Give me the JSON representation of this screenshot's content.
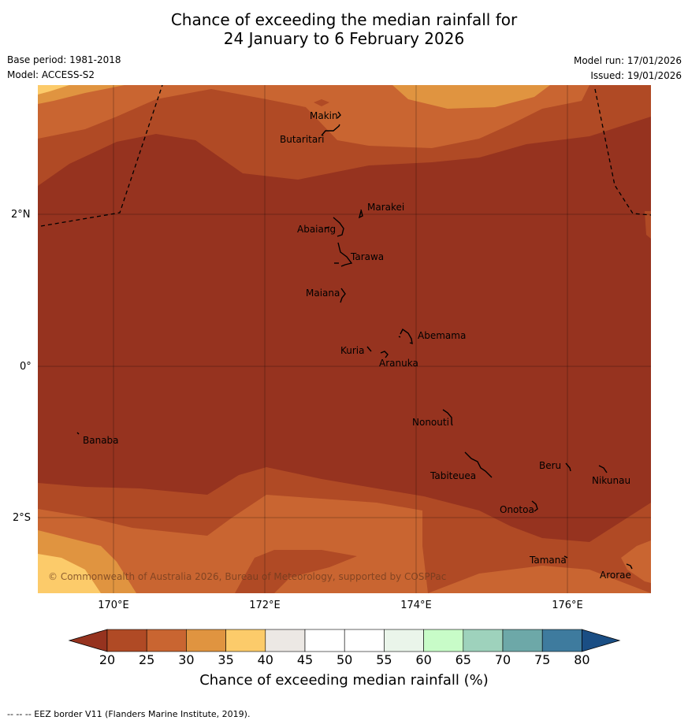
{
  "title": {
    "line1": "Chance of exceeding the median rainfall for",
    "line2": "24 January to 6 February 2026"
  },
  "meta": {
    "base_period": "Base period: 1981-2018",
    "model": "Model: ACCESS-S2",
    "model_run": "Model run: 17/01/2026",
    "issued": "Issued: 19/01/2026"
  },
  "map": {
    "lat_labels": [
      "2°N",
      "0°",
      "2°S"
    ],
    "lon_labels": [
      "170°E",
      "172°E",
      "174°E",
      "176°E"
    ],
    "places": [
      {
        "name": "Makin"
      },
      {
        "name": "Butaritari"
      },
      {
        "name": "Marakei"
      },
      {
        "name": "Abaiang"
      },
      {
        "name": "Tarawa"
      },
      {
        "name": "Maiana"
      },
      {
        "name": "Abemama"
      },
      {
        "name": "Kuria"
      },
      {
        "name": "Aranuka"
      },
      {
        "name": "Banaba"
      },
      {
        "name": "Nonouti"
      },
      {
        "name": "Beru"
      },
      {
        "name": "Tabiteuea"
      },
      {
        "name": "Nikunau"
      },
      {
        "name": "Onotoa"
      },
      {
        "name": "Tamana"
      },
      {
        "name": "Arorae"
      }
    ],
    "copyright": "© Commonwealth of Australia 2026, Bureau of Meteorology, supported by COSPPac",
    "colors": {
      "lt20": "#96331f",
      "c20_25": "#b04a25",
      "c25_30": "#c96531",
      "c30_35": "#e09440",
      "c35_40": "#fccb6a"
    }
  },
  "colorbar": {
    "label": "Chance of exceeding median rainfall (%)",
    "ticks": [
      "20",
      "25",
      "30",
      "35",
      "40",
      "45",
      "50",
      "55",
      "60",
      "65",
      "70",
      "75",
      "80"
    ],
    "colors": [
      "#b04a25",
      "#c96531",
      "#e09440",
      "#fccb6a",
      "#ece8e4",
      "#ffffff",
      "#ffffff",
      "#eaf5ea",
      "#c8fcc8",
      "#9ed2bc",
      "#6da8a8",
      "#3e7b9e"
    ],
    "low_extend_color": "#96331f",
    "high_extend_color": "#1a4e84"
  },
  "footer": "--  --  -- EEZ border V11 (Flanders Marine Institute, 2019)."
}
